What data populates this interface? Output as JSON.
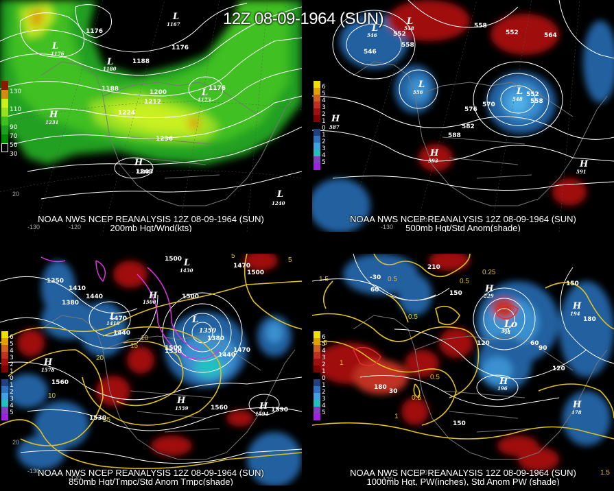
{
  "title": "12Z 08-09-1964 (SUN)",
  "panels": [
    {
      "line1": "NOAA NWS NCEP REANALYSIS 12Z 08-09-1964 (SUN)",
      "line2": "200mb Hgt/Wnd(kts)",
      "legend": [
        "130",
        "110",
        "90",
        "70",
        "50",
        "30"
      ],
      "legend_colors": [
        "#8a1a00",
        "#d88a10",
        "#c8f020",
        "#98e020",
        "#40c020",
        "#20a020",
        "#008a00"
      ],
      "lon_labels": [
        "-130",
        "-120",
        "20"
      ],
      "centers": [
        {
          "type": "L",
          "value": "1176"
        },
        {
          "type": "L",
          "value": "1167"
        },
        {
          "type": "L",
          "value": "1180"
        },
        {
          "type": "L",
          "value": "1173"
        },
        {
          "type": "H",
          "value": "1231"
        },
        {
          "type": "H",
          "value": "1248"
        },
        {
          "type": "L",
          "value": "1240"
        }
      ],
      "contours": [
        "1176",
        "1176",
        "1188",
        "1188",
        "1200",
        "1212",
        "1224",
        "1236",
        "1248",
        "1176"
      ]
    },
    {
      "line1": "NOAA NWS NCEP REANALYSIS 12Z 08-09-1964 (SUN)",
      "line2": "500mb Hgt/Std Anom(shade)",
      "legend": [
        "6",
        "5",
        "4",
        "3",
        "2",
        "1",
        "0",
        "1",
        "2",
        "3",
        "4",
        "5"
      ],
      "legend_colors": [
        "#f0e000",
        "#e0a000",
        "#d06020",
        "#c03020",
        "#a01010",
        "#800000",
        "#000000",
        "#204080",
        "#3070c0",
        "#40a0e0",
        "#20c0c0",
        "#8040c0",
        "#a020e0"
      ],
      "lon_labels": [
        "-130",
        "-120"
      ],
      "centers": [
        {
          "type": "L",
          "value": "546"
        },
        {
          "type": "L",
          "value": "548"
        },
        {
          "type": "L",
          "value": "556"
        },
        {
          "type": "L",
          "value": "548"
        },
        {
          "type": "H",
          "value": "587"
        },
        {
          "type": "H",
          "value": "593"
        },
        {
          "type": "H",
          "value": "591"
        }
      ],
      "contours": [
        "552",
        "558",
        "546",
        "558",
        "564",
        "552",
        "552",
        "558",
        "576",
        "570",
        "582",
        "588"
      ]
    },
    {
      "line1": "NOAA NWS NCEP REANALYSIS 12Z 08-09-1964 (SUN)",
      "line2": "850mb Hgt/Tmpc/Std Anom Tmpc(shade)",
      "legend": [
        "6",
        "5",
        "4",
        "3",
        "2",
        "1",
        "0",
        "1",
        "2",
        "3",
        "4",
        "5"
      ],
      "lon_labels": [
        "-130",
        "-120",
        "20"
      ],
      "centers": [
        {
          "type": "L",
          "value": "1350"
        },
        {
          "type": "L",
          "value": "1410"
        },
        {
          "type": "H",
          "value": "1500"
        },
        {
          "type": "L",
          "value": "1350"
        },
        {
          "type": "H",
          "value": "1578"
        },
        {
          "type": "H",
          "value": "1559"
        },
        {
          "type": "H",
          "value": "1594"
        },
        {
          "type": "L",
          "value": "1430"
        }
      ],
      "contours": [
        "1350",
        "1410",
        "1440",
        "1380",
        "1470",
        "1440",
        "1500",
        "1500",
        "1530",
        "1560",
        "1530",
        "1380",
        "1440",
        "1470",
        "1500",
        "1590",
        "1560"
      ],
      "temps": [
        "5",
        "10",
        "15",
        "20",
        "25",
        "10",
        "5"
      ]
    },
    {
      "line1": "NOAA NWS NCEP REANALYSIS 12Z 08-09-1964 (SUN)",
      "line2": "1000mb Hgt, PW(inches), Std Anom PW (shade)",
      "legend": [
        "6",
        "5",
        "4",
        "3",
        "2",
        "1",
        "0",
        "1",
        "2",
        "3",
        "4",
        "5"
      ],
      "lon_labels": [
        "-130",
        "-120",
        "1.5"
      ],
      "centers": [
        {
          "type": "L",
          "value": "11"
        },
        {
          "type": "H",
          "value": "196"
        },
        {
          "type": "H",
          "value": "178"
        },
        {
          "type": "H",
          "value": "194"
        },
        {
          "type": "H",
          "value": "229"
        }
      ],
      "contours": [
        "-30",
        "60",
        "30",
        "120",
        "150",
        "180",
        "180",
        "90",
        "150",
        "120",
        "150",
        "60",
        "210",
        "30"
      ],
      "pw": [
        "1.5",
        "0.5",
        "0.25",
        "0.5",
        "0.5",
        "1",
        "1",
        "0.5",
        "1.5",
        "0.5"
      ]
    }
  ]
}
